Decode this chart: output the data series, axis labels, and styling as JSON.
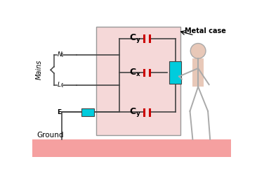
{
  "bg_color": "#ffffff",
  "ground_color": "#f5a0a0",
  "box_color": "#f5d8d8",
  "box_edge_color": "#999999",
  "wire_color": "#444444",
  "cap_color": "#cc0000",
  "cyan_color": "#00ccdd",
  "person_color": "#e8c8b8",
  "person_edge": "#aaaaaa",
  "text_color": "#000000",
  "mains_label": "Mains",
  "ground_label": "Ground",
  "metal_label": "Metal case",
  "N_label": "N",
  "L_label": "L",
  "E_label": "E"
}
